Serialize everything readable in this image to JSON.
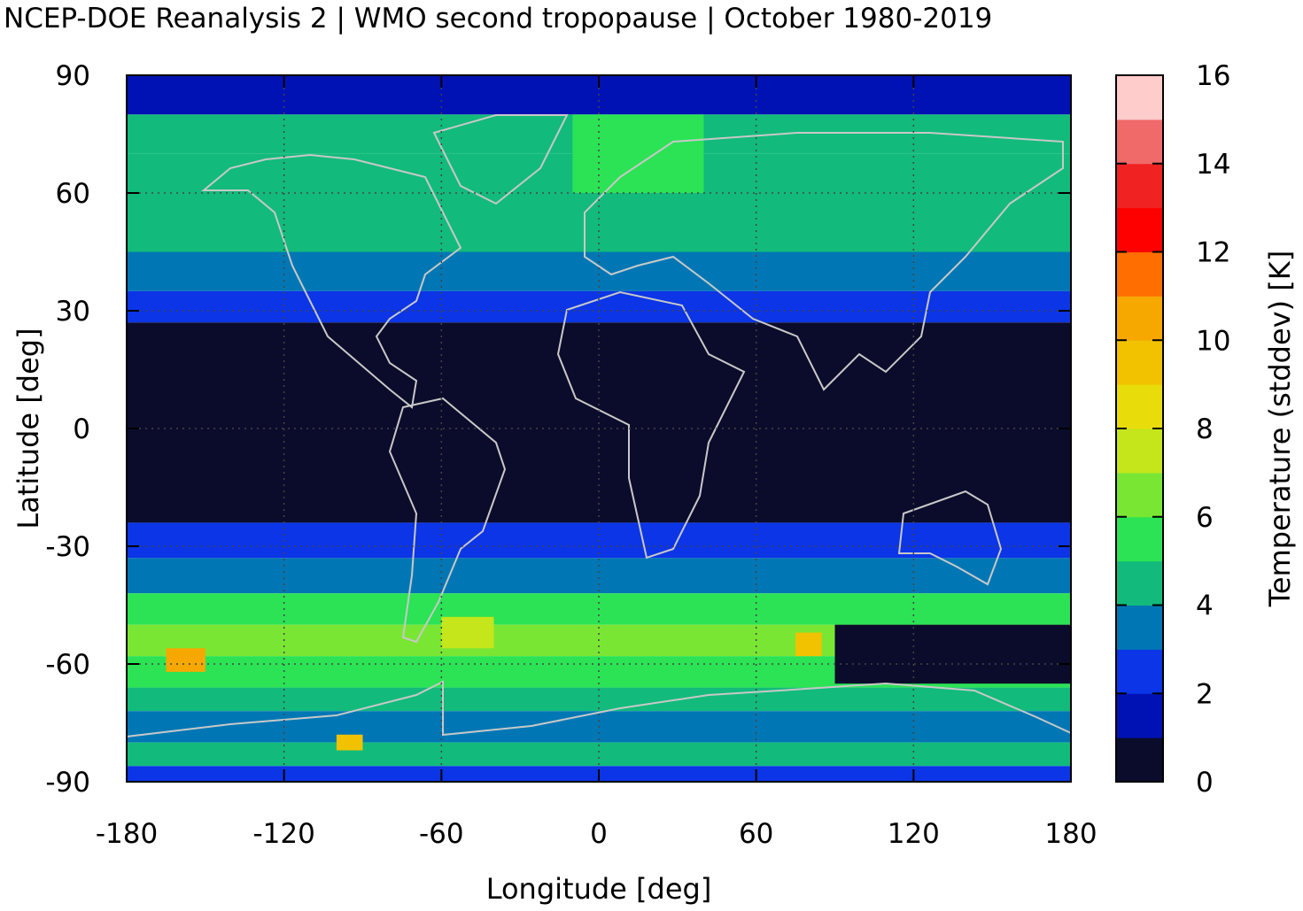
{
  "title": "NCEP-DOE Reanalysis 2 | WMO second tropopause | October 1980-2019",
  "chart_data": {
    "type": "heatmap",
    "title": "NCEP-DOE Reanalysis 2 | WMO second tropopause | October 1980-2019",
    "xlabel": "Longitude [deg]",
    "ylabel": "Latitude [deg]",
    "xlim": [
      -180,
      180
    ],
    "ylim": [
      -90,
      90
    ],
    "x_ticks": [
      "-180",
      "-120",
      "-60",
      "0",
      "60",
      "120",
      "180"
    ],
    "y_ticks": [
      "90",
      "60",
      "30",
      "0",
      "-30",
      "-60",
      "-90"
    ],
    "grid": true,
    "colorbar": {
      "label": "Temperature (stddev) [K]",
      "range": [
        0,
        16
      ],
      "ticks": [
        "0",
        "2",
        "4",
        "6",
        "8",
        "10",
        "12",
        "14",
        "16"
      ],
      "colors": [
        "#0b0c2b",
        "#0012b4",
        "#0b35e6",
        "#0077b4",
        "#12bb7b",
        "#2be355",
        "#7ae634",
        "#c4e61b",
        "#e8dc0b",
        "#f2c200",
        "#f6a800",
        "#ff6e00",
        "#ff0000",
        "#f02222",
        "#f06a6a",
        "#ffcccc"
      ]
    },
    "zonal_bands": [
      {
        "lat": [
          80,
          90
        ],
        "value": 1.5
      },
      {
        "lat": [
          70,
          80
        ],
        "value": 4.5
      },
      {
        "lat": [
          60,
          70
        ],
        "value": 4.0
      },
      {
        "lat": [
          45,
          60
        ],
        "value": 4.0
      },
      {
        "lat": [
          35,
          45
        ],
        "value": 3.2
      },
      {
        "lat": [
          27,
          35
        ],
        "value": 2.2
      },
      {
        "lat": [
          -24,
          27
        ],
        "value": 0.5
      },
      {
        "lat": [
          -33,
          -24
        ],
        "value": 2.2
      },
      {
        "lat": [
          -42,
          -33
        ],
        "value": 3.5
      },
      {
        "lat": [
          -50,
          -42
        ],
        "value": 5.0
      },
      {
        "lat": [
          -58,
          -50
        ],
        "value": 6.5
      },
      {
        "lat": [
          -66,
          -58
        ],
        "value": 5.5
      },
      {
        "lat": [
          -72,
          -66
        ],
        "value": 4.5
      },
      {
        "lat": [
          -80,
          -72
        ],
        "value": 3.0
      },
      {
        "lat": [
          -86,
          -80
        ],
        "value": 4.5
      },
      {
        "lat": [
          -90,
          -86
        ],
        "value": 2.0
      }
    ],
    "regional_features": [
      {
        "lon": [
          -10,
          40
        ],
        "lat": [
          60,
          80
        ],
        "value": 5.0
      },
      {
        "lon": [
          -60,
          -40
        ],
        "lat": [
          -56,
          -48
        ],
        "value": 7.5
      },
      {
        "lon": [
          -165,
          -150
        ],
        "lat": [
          -62,
          -56
        ],
        "value": 10.0
      },
      {
        "lon": [
          -100,
          -90
        ],
        "lat": [
          -82,
          -78
        ],
        "value": 9.5
      },
      {
        "lon": [
          75,
          85
        ],
        "lat": [
          -58,
          -52
        ],
        "value": 9.0
      },
      {
        "lon": [
          90,
          180
        ],
        "lat": [
          -65,
          -50
        ],
        "value": 0.5
      }
    ]
  }
}
